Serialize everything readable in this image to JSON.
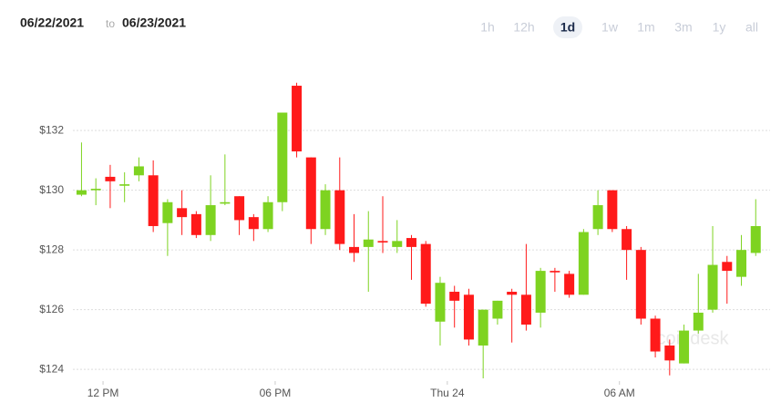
{
  "header": {
    "from": "06/22/2021",
    "to_word": "to",
    "to": "06/23/2021",
    "ranges": [
      "1h",
      "12h",
      "1d",
      "1w",
      "1m",
      "3m",
      "1y",
      "all"
    ],
    "selected_range": 2
  },
  "watermark": "coindesk",
  "chart_data": {
    "type": "candlestick",
    "x": [
      11.25,
      11.75,
      12.25,
      12.75,
      13.25,
      13.75,
      14.25,
      14.75,
      15.25,
      15.75,
      16.25,
      16.75,
      17.25,
      17.75,
      18.25,
      18.75,
      19.25,
      19.75,
      20.25,
      20.75,
      21.25,
      21.75,
      22.25,
      22.75,
      23.25,
      23.75,
      24.25,
      24.75,
      25.25,
      25.75,
      26.25,
      26.75,
      27.25,
      27.75,
      28.25,
      28.75,
      29.25,
      29.75,
      30.25,
      30.75,
      31.25,
      31.75,
      32.25,
      32.75,
      33.25,
      33.75,
      34.25,
      34.75
    ],
    "open": [
      129.85,
      130.0,
      130.45,
      130.15,
      130.5,
      130.5,
      128.9,
      129.4,
      129.2,
      128.5,
      129.55,
      129.8,
      129.1,
      128.7,
      129.6,
      133.5,
      131.1,
      128.7,
      130.0,
      128.1,
      128.1,
      128.3,
      128.1,
      128.4,
      128.2,
      125.6,
      126.6,
      126.5,
      124.8,
      125.7,
      126.6,
      126.5,
      125.9,
      127.3,
      127.2,
      126.5,
      128.7,
      130.0,
      128.7,
      128.0,
      125.7,
      124.8,
      124.2,
      125.3,
      126.0,
      127.6,
      127.1,
      127.9
    ],
    "high": [
      131.6,
      130.4,
      130.85,
      130.6,
      131.1,
      131.0,
      129.7,
      130.0,
      129.3,
      130.5,
      131.2,
      129.8,
      129.2,
      129.8,
      132.6,
      133.6,
      131.1,
      130.2,
      131.1,
      129.2,
      129.3,
      129.8,
      129.0,
      128.5,
      128.3,
      127.1,
      126.8,
      126.7,
      126.0,
      126.3,
      126.7,
      128.2,
      127.4,
      127.4,
      127.3,
      128.7,
      130.0,
      130.0,
      128.8,
      128.1,
      125.8,
      125.0,
      125.5,
      127.2,
      128.8,
      127.8,
      128.5,
      129.7
    ],
    "low": [
      129.8,
      129.5,
      129.4,
      129.6,
      130.3,
      128.6,
      127.8,
      128.5,
      128.4,
      128.3,
      129.5,
      128.5,
      128.3,
      128.6,
      129.3,
      131.1,
      128.2,
      128.5,
      128.0,
      127.6,
      126.6,
      127.9,
      127.9,
      127.0,
      126.1,
      124.8,
      125.4,
      124.8,
      123.7,
      125.5,
      124.9,
      125.3,
      125.4,
      126.6,
      126.4,
      126.5,
      128.5,
      128.6,
      127.0,
      125.5,
      124.4,
      123.8,
      124.2,
      125.2,
      125.9,
      126.2,
      126.8,
      127.8
    ],
    "close": [
      130.0,
      130.05,
      130.3,
      130.2,
      130.8,
      128.8,
      129.6,
      129.1,
      128.5,
      129.5,
      129.6,
      129.0,
      128.7,
      129.6,
      132.6,
      131.3,
      128.7,
      130.0,
      128.2,
      127.9,
      128.35,
      128.25,
      128.3,
      128.1,
      126.2,
      126.9,
      126.3,
      125.0,
      126.0,
      126.3,
      126.5,
      125.5,
      127.3,
      127.25,
      126.5,
      128.6,
      129.5,
      128.7,
      128.0,
      125.7,
      124.6,
      124.3,
      125.3,
      125.9,
      127.5,
      127.3,
      128.0,
      128.8
    ],
    "up_color": "#7ed321",
    "down_color": "#ff1a1a",
    "xlim": [
      10.95,
      35.25
    ],
    "xticks": [
      {
        "value": 12,
        "label": "12 PM"
      },
      {
        "value": 18,
        "label": "06 PM"
      },
      {
        "value": 24,
        "label": "Thu 24"
      },
      {
        "value": 30,
        "label": "06 AM"
      }
    ],
    "ylim": [
      123.7,
      135.15
    ],
    "yticks": [
      {
        "value": 124,
        "label": "$124"
      },
      {
        "value": 126,
        "label": "$126"
      },
      {
        "value": 128,
        "label": "$128"
      },
      {
        "value": 130,
        "label": "$130"
      },
      {
        "value": 132,
        "label": "$132"
      }
    ],
    "grid": true
  }
}
